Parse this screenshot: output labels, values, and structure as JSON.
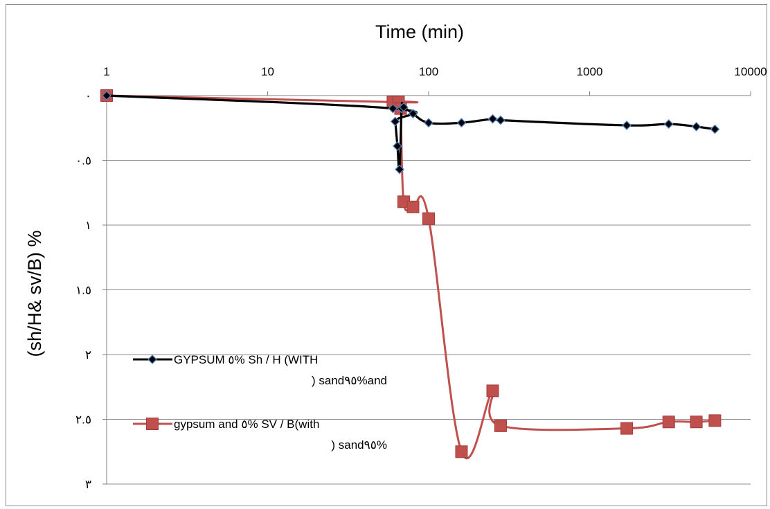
{
  "chart_data": {
    "type": "line",
    "xlabel": "Time (min)",
    "ylabel": "(sh/H& sv/B) %",
    "x_scale": "log",
    "x_axis_position": "top",
    "y_axis_reversed": true,
    "xlim": [
      1,
      10000
    ],
    "ylim": [
      0,
      3
    ],
    "x_tick_labels": [
      "1",
      "10",
      "100",
      "1000",
      "10000"
    ],
    "y_tick_labels": [
      "٠",
      "٠.٥",
      "١",
      "١.٥",
      "٢",
      "٢.٥",
      "٣"
    ],
    "grid": "horizontal",
    "legend_position": "left",
    "series": [
      {
        "name_line1": "GYPSUM ٥% Sh / H (WITH",
        "name_line2": ") sand٩٥%and",
        "color": "#000000",
        "marker": "diamond",
        "marker_color": "#1f3864",
        "x": [
          1,
          60,
          62,
          64,
          66,
          68,
          70,
          80,
          100,
          160,
          250,
          280,
          1700,
          3100,
          4600,
          6000
        ],
        "y": [
          0,
          0.1,
          0.2,
          0.39,
          0.57,
          0.1,
          0.09,
          0.14,
          0.21,
          0.21,
          0.18,
          0.19,
          0.23,
          0.22,
          0.24,
          0.26
        ]
      },
      {
        "name_line1": "gypsum and ٥% SV / B(with",
        "name_line2": ") sand٩٥%",
        "color": "#c0504d",
        "marker": "square",
        "marker_color": "#c0504d",
        "x": [
          1,
          60,
          65,
          67,
          70,
          80,
          100,
          160,
          250,
          280,
          1700,
          3100,
          4600,
          6000
        ],
        "y": [
          0,
          0.05,
          0.05,
          0.1,
          0.82,
          0.86,
          0.95,
          2.75,
          2.28,
          2.55,
          2.57,
          2.52,
          2.52,
          2.51
        ]
      }
    ]
  }
}
